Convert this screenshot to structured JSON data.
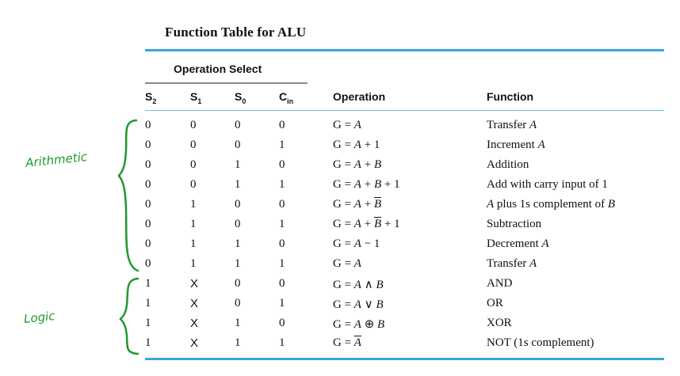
{
  "title": "Function Table for ALU",
  "operation_select_label": "Operation Select",
  "headers": {
    "s2": {
      "main": "S",
      "sub": "2"
    },
    "s1": {
      "main": "S",
      "sub": "1"
    },
    "s0": {
      "main": "S",
      "sub": "0"
    },
    "cin": {
      "main": "C",
      "sub": "in"
    },
    "operation": "Operation",
    "function": "Function"
  },
  "rows": [
    {
      "s2": "0",
      "s1": "0",
      "s0": "0",
      "cin": "0",
      "op": [
        [
          "G = ",
          ""
        ],
        [
          "A",
          "it"
        ]
      ],
      "fn": [
        [
          "Transfer ",
          ""
        ],
        [
          "A",
          "it"
        ]
      ]
    },
    {
      "s2": "0",
      "s1": "0",
      "s0": "0",
      "cin": "1",
      "op": [
        [
          "G = ",
          ""
        ],
        [
          "A",
          "it"
        ],
        [
          " + 1",
          ""
        ]
      ],
      "fn": [
        [
          "Increment ",
          ""
        ],
        [
          "A",
          "it"
        ]
      ]
    },
    {
      "s2": "0",
      "s1": "0",
      "s0": "1",
      "cin": "0",
      "op": [
        [
          "G = ",
          ""
        ],
        [
          "A",
          "it"
        ],
        [
          " + ",
          ""
        ],
        [
          "B",
          "it"
        ]
      ],
      "fn": [
        [
          "Addition",
          ""
        ]
      ]
    },
    {
      "s2": "0",
      "s1": "0",
      "s0": "1",
      "cin": "1",
      "op": [
        [
          "G = ",
          ""
        ],
        [
          "A",
          "it"
        ],
        [
          " + ",
          ""
        ],
        [
          "B",
          "it"
        ],
        [
          " + 1",
          ""
        ]
      ],
      "fn": [
        [
          "Add with carry input of 1",
          ""
        ]
      ]
    },
    {
      "s2": "0",
      "s1": "1",
      "s0": "0",
      "cin": "0",
      "op": [
        [
          "G = ",
          ""
        ],
        [
          "A",
          "it"
        ],
        [
          " + ",
          ""
        ],
        [
          "B",
          "it ov"
        ]
      ],
      "fn": [
        [
          "A",
          "it"
        ],
        [
          " plus 1s complement of ",
          ""
        ],
        [
          "B",
          "it"
        ]
      ]
    },
    {
      "s2": "0",
      "s1": "1",
      "s0": "0",
      "cin": "1",
      "op": [
        [
          "G = ",
          ""
        ],
        [
          "A",
          "it"
        ],
        [
          " + ",
          ""
        ],
        [
          "B",
          "it ov"
        ],
        [
          " + 1",
          ""
        ]
      ],
      "fn": [
        [
          "Subtraction",
          ""
        ]
      ]
    },
    {
      "s2": "0",
      "s1": "1",
      "s0": "1",
      "cin": "0",
      "op": [
        [
          "G = ",
          ""
        ],
        [
          "A",
          "it"
        ],
        [
          " − 1",
          ""
        ]
      ],
      "fn": [
        [
          "Decrement ",
          ""
        ],
        [
          "A",
          "it"
        ]
      ]
    },
    {
      "s2": "0",
      "s1": "1",
      "s0": "1",
      "cin": "1",
      "op": [
        [
          "G = ",
          ""
        ],
        [
          "A",
          "it"
        ]
      ],
      "fn": [
        [
          "Transfer ",
          ""
        ],
        [
          "A",
          "it"
        ]
      ]
    },
    {
      "s2": "1",
      "s1": "X",
      "s0": "0",
      "cin": "0",
      "op": [
        [
          "G = ",
          ""
        ],
        [
          "A",
          "it"
        ],
        [
          " ∧ ",
          ""
        ],
        [
          "B",
          "it"
        ]
      ],
      "fn": [
        [
          "AND",
          ""
        ]
      ]
    },
    {
      "s2": "1",
      "s1": "X",
      "s0": "0",
      "cin": "1",
      "op": [
        [
          "G = ",
          ""
        ],
        [
          "A",
          "it"
        ],
        [
          " ∨ ",
          ""
        ],
        [
          "B",
          "it"
        ]
      ],
      "fn": [
        [
          "OR",
          ""
        ]
      ]
    },
    {
      "s2": "1",
      "s1": "X",
      "s0": "1",
      "cin": "0",
      "op": [
        [
          "G = ",
          ""
        ],
        [
          "A",
          "it"
        ],
        [
          " ⊕ ",
          ""
        ],
        [
          "B",
          "it"
        ]
      ],
      "fn": [
        [
          "XOR",
          ""
        ]
      ]
    },
    {
      "s2": "1",
      "s1": "X",
      "s0": "1",
      "cin": "1",
      "op": [
        [
          "G = ",
          ""
        ],
        [
          "A",
          "it ov"
        ]
      ],
      "fn": [
        [
          "NOT (1s complement)",
          ""
        ]
      ]
    }
  ],
  "annotations": {
    "arithmetic": "Arithmetic",
    "logic": "Logic",
    "color": "#1e9a2e"
  },
  "accent_color": "#39a8d8"
}
